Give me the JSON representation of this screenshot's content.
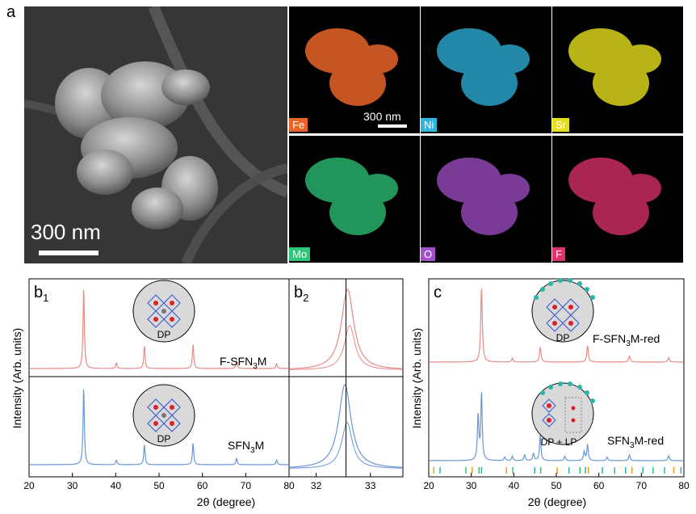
{
  "panel_a": {
    "letter": "a",
    "sem_scale": "300 nm",
    "map_scale": "300 nm",
    "elements": [
      {
        "label": "Fe",
        "color": "#e8652a"
      },
      {
        "label": "Ni",
        "color": "#2fb6e0"
      },
      {
        "label": "Sr",
        "color": "#e6e01c"
      },
      {
        "label": "Mo",
        "color": "#2ec77a"
      },
      {
        "label": "O",
        "color": "#a24fc9"
      },
      {
        "label": "F",
        "color": "#e0336a"
      }
    ]
  },
  "panel_b1": {
    "letter": "b",
    "sub": "1",
    "ylabel": "Intensity (Arb. units)",
    "curve_top": {
      "pre": "F-SFN",
      "sub": "3",
      "post": "M",
      "color": "#e88a86"
    },
    "curve_bottom": {
      "pre": "SFN",
      "sub": "3",
      "post": "M",
      "color": "#6a97d8"
    },
    "inset_label": "DP"
  },
  "panel_b2": {
    "letter": "b",
    "sub": "2"
  },
  "panel_c": {
    "letter": "c",
    "ylabel": "Intensity (Arb. units)",
    "curve_top": {
      "pre": "F-SFN",
      "sub": "3",
      "post": "M-red",
      "color": "#e88a86"
    },
    "curve_bottom": {
      "pre": "SFN",
      "sub": "3",
      "post": "M-red",
      "color": "#6a97d8"
    },
    "inset_top_label": "DP",
    "inset_bottom_label": "DP + LP"
  },
  "xlabel": "2θ (degree)",
  "chart_data": [
    {
      "type": "line",
      "panel": "b1",
      "xlim": [
        20,
        80
      ],
      "x_ticks": [
        20,
        30,
        40,
        50,
        60,
        70,
        80
      ],
      "xlabel": "2θ (degree)",
      "ylabel": "Intensity (Arb. units)",
      "series": [
        {
          "name": "F-SFN3M",
          "peaks": [
            [
              32.5,
              1.0
            ],
            [
              40.1,
              0.07
            ],
            [
              46.6,
              0.28
            ],
            [
              57.9,
              0.3
            ],
            [
              68.0,
              0.1
            ],
            [
              77.3,
              0.06
            ]
          ]
        },
        {
          "name": "SFN3M",
          "peaks": [
            [
              32.5,
              1.0
            ],
            [
              40.1,
              0.06
            ],
            [
              46.6,
              0.26
            ],
            [
              57.9,
              0.28
            ],
            [
              68.0,
              0.08
            ],
            [
              77.3,
              0.06
            ]
          ]
        }
      ]
    },
    {
      "type": "line",
      "panel": "b2",
      "xlim": [
        31.5,
        33.6
      ],
      "x_ticks": [
        32,
        33
      ],
      "xlabel": "2θ (degree)",
      "reference_line_x": 32.55,
      "series": [
        {
          "name": "F-SFN3M",
          "peak_center": 32.58
        },
        {
          "name": "SFN3M",
          "peak_center": 32.53
        }
      ]
    },
    {
      "type": "line",
      "panel": "c",
      "xlim": [
        20,
        80
      ],
      "x_ticks": [
        20,
        30,
        40,
        50,
        60,
        70,
        80
      ],
      "xlabel": "2θ (degree)",
      "ylabel": "Intensity (Arb. units)",
      "series": [
        {
          "name": "F-SFN3M-red",
          "peaks": [
            [
              32.3,
              1.0
            ],
            [
              39.6,
              0.05
            ],
            [
              46.2,
              0.2
            ],
            [
              57.4,
              0.22
            ],
            [
              67.3,
              0.08
            ],
            [
              76.6,
              0.06
            ]
          ]
        },
        {
          "name": "SFN3M-red",
          "peaks": [
            [
              31.5,
              0.62
            ],
            [
              32.3,
              0.92
            ],
            [
              37.8,
              0.05
            ],
            [
              39.6,
              0.06
            ],
            [
              42.5,
              0.08
            ],
            [
              44.6,
              0.1
            ],
            [
              46.2,
              0.35
            ],
            [
              52.0,
              0.06
            ],
            [
              56.6,
              0.12
            ],
            [
              57.4,
              0.22
            ],
            [
              62.0,
              0.05
            ],
            [
              67.3,
              0.08
            ],
            [
              76.6,
              0.07
            ]
          ]
        }
      ]
    }
  ]
}
